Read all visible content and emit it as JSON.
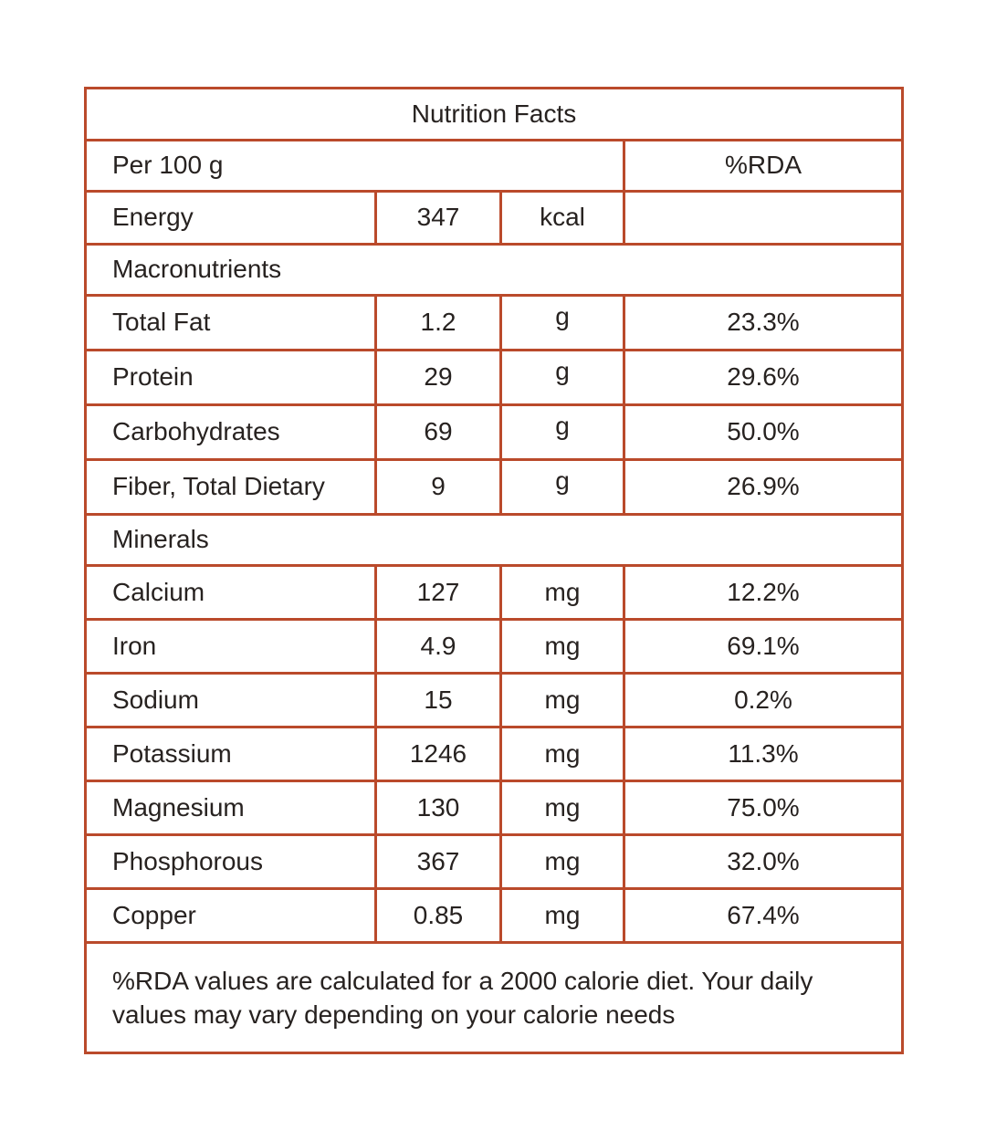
{
  "title": "Nutrition Facts",
  "columns": {
    "serving": "Per 100 g",
    "rda": "%RDA"
  },
  "energy": {
    "label": "Energy",
    "value": "347",
    "unit": "kcal",
    "rda": ""
  },
  "sections": [
    {
      "name": "Macronutrients",
      "rows": [
        {
          "label": "Total Fat",
          "value": "1.2",
          "unit": "g",
          "rda": "23.3%"
        },
        {
          "label": "Protein",
          "value": "29",
          "unit": "g",
          "rda": "29.6%"
        },
        {
          "label": "Carbohydrates",
          "value": "69",
          "unit": "g",
          "rda": "50.0%"
        },
        {
          "label": "Fiber, Total Dietary",
          "value": "9",
          "unit": "g",
          "rda": "26.9%"
        }
      ]
    },
    {
      "name": "Minerals",
      "rows": [
        {
          "label": "Calcium",
          "value": "127",
          "unit": "mg",
          "rda": "12.2%"
        },
        {
          "label": "Iron",
          "value": "4.9",
          "unit": "mg",
          "rda": "69.1%"
        },
        {
          "label": "Sodium",
          "value": "15",
          "unit": "mg",
          "rda": "0.2%"
        },
        {
          "label": "Potassium",
          "value": "1246",
          "unit": "mg",
          "rda": "11.3%"
        },
        {
          "label": "Magnesium",
          "value": "130",
          "unit": "mg",
          "rda": "75.0%"
        },
        {
          "label": "Phosphorous",
          "value": "367",
          "unit": "mg",
          "rda": "32.0%"
        },
        {
          "label": "Copper",
          "value": "0.85",
          "unit": "mg",
          "rda": "67.4%"
        }
      ]
    }
  ],
  "footnote": "%RDA values are calculated for a 2000 calorie diet. Your daily values may vary depending on your calorie needs",
  "colors": {
    "border": "#BA4A2B",
    "text": "#272220",
    "background": "#FFFFFF"
  }
}
